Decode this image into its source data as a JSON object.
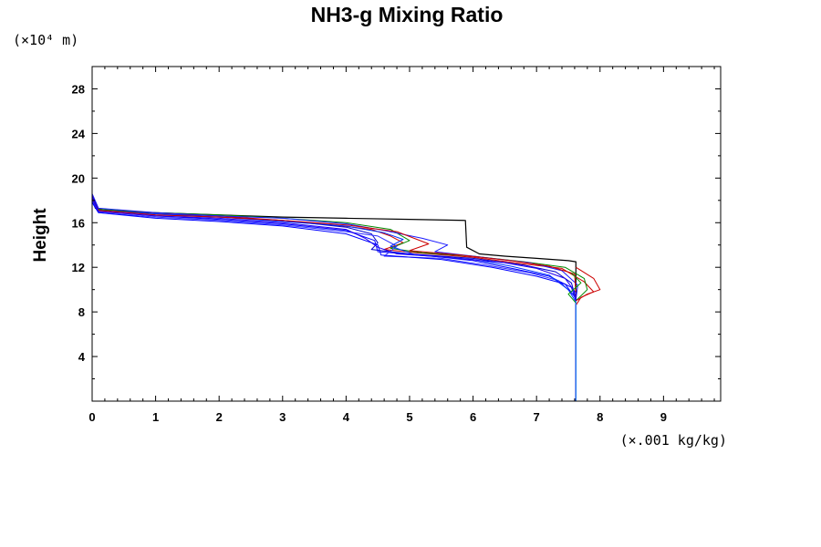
{
  "chart_data": {
    "type": "line",
    "title": "NH3-g Mixing Ratio",
    "ylabel": "Height",
    "y_unit": "(×10⁴ m)",
    "x_unit": "(×.001 kg/kg)",
    "xlim": [
      0,
      9.9
    ],
    "ylim": [
      0,
      30
    ],
    "xticks": [
      "0",
      "1",
      "2",
      "3",
      "4",
      "5",
      "6",
      "7",
      "8",
      "9"
    ],
    "yticks": [
      "4",
      "8",
      "12",
      "16",
      "20",
      "24",
      "28"
    ],
    "grid": false,
    "series": [
      {
        "color": "#000000",
        "points": [
          [
            0.0,
            18.2
          ],
          [
            0.05,
            17.3
          ],
          [
            0.3,
            17.0
          ],
          [
            1.0,
            16.9
          ],
          [
            2.0,
            16.7
          ],
          [
            3.0,
            16.5
          ],
          [
            4.0,
            16.4
          ],
          [
            5.0,
            16.3
          ],
          [
            5.88,
            16.2
          ],
          [
            5.9,
            13.8
          ],
          [
            6.1,
            13.2
          ],
          [
            6.5,
            13.0
          ],
          [
            7.0,
            12.8
          ],
          [
            7.5,
            12.6
          ],
          [
            7.62,
            12.5
          ],
          [
            7.62,
            9.0
          ],
          [
            7.62,
            0.0
          ]
        ]
      },
      {
        "color": "#cc0000",
        "points": [
          [
            0.0,
            18.5
          ],
          [
            0.1,
            17.2
          ],
          [
            1.0,
            16.8
          ],
          [
            2.0,
            16.6
          ],
          [
            3.0,
            16.2
          ],
          [
            3.8,
            15.8
          ],
          [
            4.4,
            15.4
          ],
          [
            4.7,
            14.8
          ],
          [
            4.9,
            14.2
          ],
          [
            4.6,
            13.6
          ],
          [
            5.1,
            13.3
          ],
          [
            6.0,
            12.9
          ],
          [
            6.8,
            12.3
          ],
          [
            7.4,
            11.9
          ],
          [
            7.75,
            10.7
          ],
          [
            7.9,
            9.8
          ],
          [
            7.7,
            9.3
          ],
          [
            7.62,
            8.6
          ],
          [
            7.62,
            0.0
          ]
        ]
      },
      {
        "color": "#008800",
        "points": [
          [
            0.0,
            18.3
          ],
          [
            0.1,
            17.2
          ],
          [
            1.0,
            16.9
          ],
          [
            2.0,
            16.7
          ],
          [
            3.0,
            16.4
          ],
          [
            4.0,
            16.0
          ],
          [
            4.7,
            15.4
          ],
          [
            5.0,
            14.4
          ],
          [
            4.7,
            13.7
          ],
          [
            5.2,
            13.3
          ],
          [
            6.0,
            13.0
          ],
          [
            6.8,
            12.5
          ],
          [
            7.45,
            12.0
          ],
          [
            7.75,
            11.0
          ],
          [
            7.8,
            10.0
          ],
          [
            7.62,
            9.0
          ],
          [
            7.62,
            0.0
          ]
        ]
      },
      {
        "color": "#0000cc",
        "points": [
          [
            0.0,
            18.4
          ],
          [
            0.1,
            17.1
          ],
          [
            1.0,
            16.7
          ],
          [
            2.0,
            16.5
          ],
          [
            3.0,
            16.2
          ],
          [
            4.0,
            15.6
          ],
          [
            4.4,
            15.0
          ],
          [
            4.5,
            14.2
          ],
          [
            4.4,
            13.6
          ],
          [
            5.0,
            13.2
          ],
          [
            6.0,
            12.8
          ],
          [
            6.8,
            12.2
          ],
          [
            7.3,
            11.6
          ],
          [
            7.55,
            10.6
          ],
          [
            7.62,
            9.2
          ],
          [
            7.62,
            0.0
          ]
        ]
      },
      {
        "color": "#0000ff",
        "points": [
          [
            0.0,
            18.0
          ],
          [
            0.1,
            17.0
          ],
          [
            1.0,
            16.6
          ],
          [
            2.0,
            16.3
          ],
          [
            3.0,
            15.9
          ],
          [
            4.0,
            15.3
          ],
          [
            4.45,
            14.4
          ],
          [
            4.5,
            13.4
          ],
          [
            5.2,
            13.1
          ],
          [
            6.0,
            12.6
          ],
          [
            6.7,
            11.8
          ],
          [
            7.2,
            11.2
          ],
          [
            7.55,
            10.2
          ],
          [
            7.62,
            9.0
          ],
          [
            7.62,
            0.0
          ]
        ]
      },
      {
        "color": "#1a1aff",
        "points": [
          [
            0.0,
            18.6
          ],
          [
            0.1,
            17.3
          ],
          [
            1.0,
            16.9
          ],
          [
            2.0,
            16.6
          ],
          [
            3.0,
            16.4
          ],
          [
            4.0,
            15.9
          ],
          [
            4.6,
            15.3
          ],
          [
            5.2,
            14.6
          ],
          [
            5.6,
            14.0
          ],
          [
            5.4,
            13.4
          ],
          [
            6.0,
            13.0
          ],
          [
            6.9,
            12.4
          ],
          [
            7.4,
            11.7
          ],
          [
            7.65,
            10.4
          ],
          [
            7.62,
            9.1
          ],
          [
            7.62,
            0.0
          ]
        ]
      },
      {
        "color": "#3333ff",
        "points": [
          [
            0.0,
            17.9
          ],
          [
            0.1,
            16.9
          ],
          [
            1.0,
            16.5
          ],
          [
            2.0,
            16.2
          ],
          [
            3.0,
            15.8
          ],
          [
            4.0,
            15.2
          ],
          [
            4.5,
            14.8
          ],
          [
            4.8,
            13.9
          ],
          [
            4.6,
            13.0
          ],
          [
            5.5,
            12.8
          ],
          [
            6.2,
            12.2
          ],
          [
            6.9,
            11.5
          ],
          [
            7.35,
            10.8
          ],
          [
            7.62,
            9.3
          ],
          [
            7.62,
            0.0
          ]
        ]
      },
      {
        "color": "#0033ff",
        "points": [
          [
            0.0,
            18.1
          ],
          [
            0.1,
            17.1
          ],
          [
            1.0,
            16.8
          ],
          [
            2.0,
            16.5
          ],
          [
            3.0,
            16.1
          ],
          [
            4.0,
            15.7
          ],
          [
            4.6,
            15.1
          ],
          [
            4.9,
            14.5
          ],
          [
            4.7,
            13.9
          ],
          [
            5.1,
            13.1
          ],
          [
            6.0,
            12.7
          ],
          [
            6.6,
            12.1
          ],
          [
            7.2,
            11.3
          ],
          [
            7.5,
            10.0
          ],
          [
            7.62,
            8.9
          ],
          [
            7.62,
            0.0
          ]
        ]
      },
      {
        "color": "#cc0000",
        "points": [
          [
            0.0,
            18.2
          ],
          [
            0.1,
            17.1
          ],
          [
            1.0,
            16.7
          ],
          [
            2.0,
            16.5
          ],
          [
            3.0,
            16.2
          ],
          [
            4.0,
            15.8
          ],
          [
            4.8,
            15.2
          ],
          [
            5.3,
            14.1
          ],
          [
            5.0,
            13.5
          ],
          [
            5.8,
            13.1
          ],
          [
            6.6,
            12.6
          ],
          [
            7.2,
            12.1
          ],
          [
            7.6,
            11.4
          ],
          [
            7.62,
            9.5
          ],
          [
            7.62,
            0.0
          ]
        ]
      },
      {
        "color": "#2200ee",
        "points": [
          [
            0.0,
            18.3
          ],
          [
            0.1,
            17.0
          ],
          [
            1.0,
            16.6
          ],
          [
            2.0,
            16.4
          ],
          [
            3.0,
            16.0
          ],
          [
            4.0,
            15.4
          ],
          [
            4.3,
            14.6
          ],
          [
            4.5,
            13.8
          ],
          [
            4.8,
            13.2
          ],
          [
            5.6,
            12.9
          ],
          [
            6.5,
            12.4
          ],
          [
            7.0,
            11.9
          ],
          [
            7.45,
            11.0
          ],
          [
            7.62,
            9.7
          ],
          [
            7.62,
            0.0
          ]
        ]
      },
      {
        "color": "#0000ff",
        "points": [
          [
            0.0,
            17.8
          ],
          [
            0.1,
            16.9
          ],
          [
            1.0,
            16.4
          ],
          [
            2.0,
            16.1
          ],
          [
            3.0,
            15.7
          ],
          [
            4.0,
            15.0
          ],
          [
            4.5,
            14.0
          ],
          [
            4.55,
            13.1
          ],
          [
            5.5,
            12.7
          ],
          [
            6.3,
            12.0
          ],
          [
            7.0,
            11.2
          ],
          [
            7.45,
            10.5
          ],
          [
            7.62,
            9.2
          ],
          [
            7.62,
            0.0
          ]
        ]
      },
      {
        "color": "#cc0000",
        "points": [
          [
            7.62,
            12.0
          ],
          [
            7.9,
            11.0
          ],
          [
            8.0,
            10.0
          ],
          [
            7.8,
            9.6
          ],
          [
            7.62,
            9.0
          ]
        ]
      },
      {
        "color": "#009900",
        "points": [
          [
            7.55,
            11.5
          ],
          [
            7.7,
            10.6
          ],
          [
            7.5,
            9.6
          ],
          [
            7.62,
            8.8
          ]
        ]
      },
      {
        "color": "#2196f3",
        "points": [
          [
            7.62,
            9.0
          ],
          [
            7.62,
            0.0
          ]
        ]
      },
      {
        "color": "#0097a7",
        "points": [
          [
            0.0,
            30.0
          ],
          [
            0.0,
            18.5
          ]
        ]
      }
    ]
  }
}
